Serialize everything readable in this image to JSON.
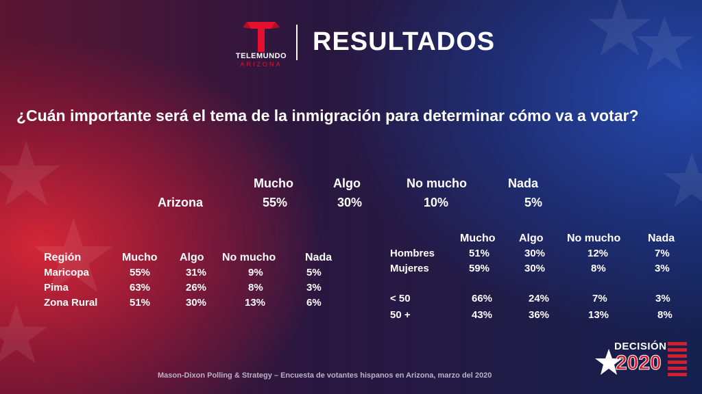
{
  "logo": {
    "brand": "TELEMUNDO",
    "region": "ARIZONA",
    "mark": "T"
  },
  "title": "RESULTADOS",
  "question": "¿Cuán importante será el tema de la inmigración para determinar cómo va a votar?",
  "overall": {
    "headers": [
      "Mucho",
      "Algo",
      "No mucho",
      "Nada"
    ],
    "label": "Arizona",
    "values": [
      "55%",
      "30%",
      "10%",
      "5%"
    ]
  },
  "region_table": {
    "headers": [
      "Región",
      "Mucho",
      "Algo",
      "No mucho",
      "Nada"
    ],
    "rows": [
      [
        "Maricopa",
        "55%",
        "31%",
        "9%",
        "5%"
      ],
      [
        "Pima",
        "63%",
        "26%",
        "8%",
        "3%"
      ],
      [
        "Zona Rural",
        "51%",
        "30%",
        "13%",
        "6%"
      ]
    ]
  },
  "demo_table": {
    "headers": [
      "Mucho",
      "Algo",
      "No mucho",
      "Nada"
    ],
    "rows": [
      [
        "Hombres",
        "51%",
        "30%",
        "12%",
        "7%"
      ],
      [
        "Mujeres",
        "59%",
        "30%",
        "8%",
        "3%"
      ],
      [
        "< 50",
        "66%",
        "24%",
        "7%",
        "3%"
      ],
      [
        "50 +",
        "43%",
        "36%",
        "13%",
        "8%"
      ]
    ]
  },
  "footer": "Mason-Dixon  Polling & Strategy – Encuesta de votantes hispanos en Arizona, marzo del 2020",
  "badge": {
    "line1": "DECISIÓN",
    "line2": "2020"
  },
  "colors": {
    "brand_red": "#e4102e",
    "badge_blue": "#1d3a8f",
    "badge_red": "#d21f2f"
  }
}
